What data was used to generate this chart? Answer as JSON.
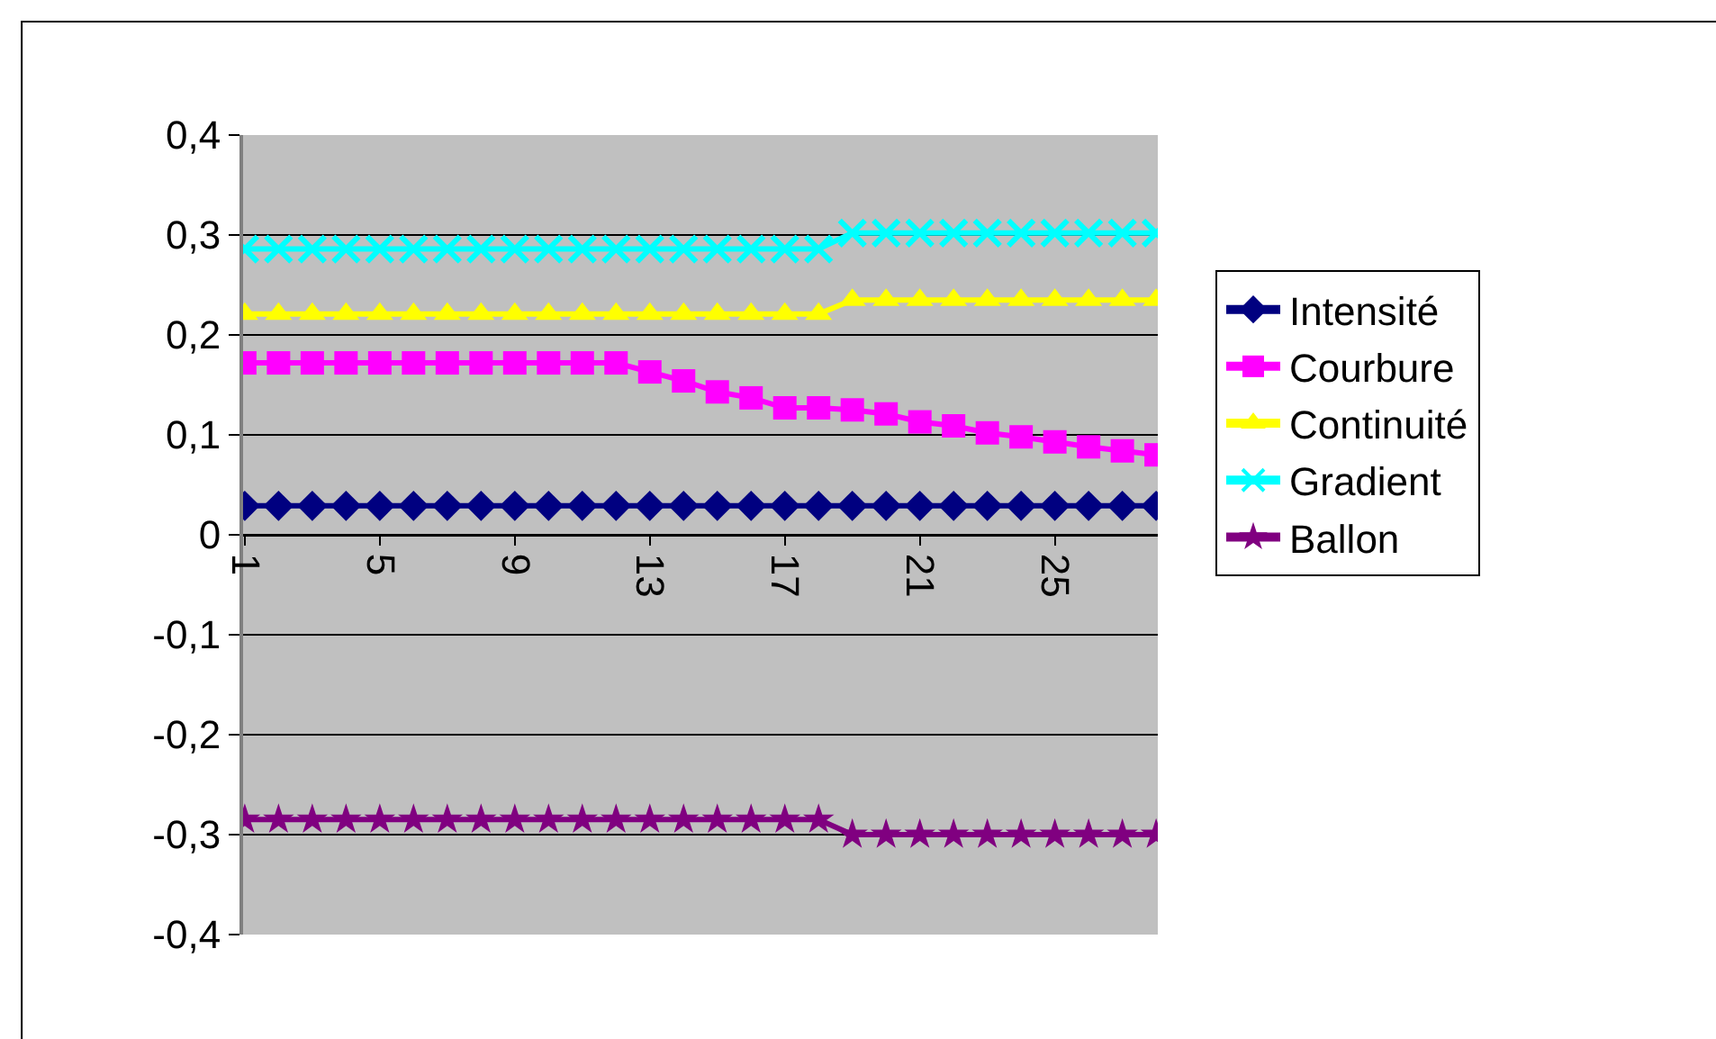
{
  "chart_data": {
    "type": "line",
    "categories": [
      "1",
      null,
      null,
      null,
      "5",
      null,
      null,
      null,
      "9",
      null,
      null,
      null,
      "13",
      null,
      null,
      null,
      "17",
      null,
      null,
      null,
      "21",
      null,
      null,
      null,
      "25",
      null,
      null,
      null
    ],
    "series": [
      {
        "name": "Intensité",
        "color": "#000080",
        "marker": "diamond",
        "values": [
          0.029,
          0.029,
          0.029,
          0.029,
          0.029,
          0.029,
          0.029,
          0.029,
          0.029,
          0.029,
          0.029,
          0.029,
          0.029,
          0.029,
          0.029,
          0.029,
          0.029,
          0.029,
          0.029,
          0.029,
          0.029,
          0.029,
          0.029,
          0.029,
          0.029,
          0.029,
          0.029,
          0.029
        ]
      },
      {
        "name": "Courbure",
        "color": "#ff00ff",
        "marker": "square",
        "values": [
          0.172,
          0.172,
          0.172,
          0.172,
          0.172,
          0.172,
          0.172,
          0.172,
          0.172,
          0.172,
          0.172,
          0.172,
          0.163,
          0.154,
          0.143,
          0.137,
          0.127,
          0.127,
          0.125,
          0.121,
          0.113,
          0.109,
          0.102,
          0.098,
          0.093,
          0.088,
          0.084,
          0.08
        ]
      },
      {
        "name": "Continuité",
        "color": "#ffff00",
        "marker": "triangle",
        "values": [
          0.221,
          0.221,
          0.221,
          0.221,
          0.221,
          0.221,
          0.221,
          0.221,
          0.221,
          0.221,
          0.221,
          0.221,
          0.221,
          0.221,
          0.221,
          0.221,
          0.221,
          0.221,
          0.235,
          0.235,
          0.235,
          0.235,
          0.235,
          0.235,
          0.235,
          0.235,
          0.235,
          0.235
        ]
      },
      {
        "name": "Gradient",
        "color": "#00ffff",
        "marker": "cross",
        "values": [
          0.286,
          0.286,
          0.286,
          0.286,
          0.286,
          0.286,
          0.286,
          0.286,
          0.286,
          0.286,
          0.286,
          0.286,
          0.286,
          0.286,
          0.286,
          0.286,
          0.286,
          0.286,
          0.302,
          0.302,
          0.302,
          0.302,
          0.302,
          0.302,
          0.302,
          0.302,
          0.302,
          0.302
        ]
      },
      {
        "name": "Ballon",
        "color": "#800080",
        "marker": "star",
        "values": [
          -0.285,
          -0.285,
          -0.285,
          -0.285,
          -0.285,
          -0.285,
          -0.285,
          -0.285,
          -0.285,
          -0.285,
          -0.285,
          -0.285,
          -0.285,
          -0.285,
          -0.285,
          -0.285,
          -0.285,
          -0.285,
          -0.3,
          -0.3,
          -0.3,
          -0.3,
          -0.3,
          -0.3,
          -0.3,
          -0.3,
          -0.3,
          -0.3
        ]
      }
    ],
    "ylim": [
      -0.4,
      0.4
    ],
    "yticks": [
      {
        "value": -0.4,
        "label": "-0,4"
      },
      {
        "value": -0.3,
        "label": "-0,3"
      },
      {
        "value": -0.2,
        "label": "-0,2"
      },
      {
        "value": -0.1,
        "label": "-0,1"
      },
      {
        "value": 0,
        "label": "0"
      },
      {
        "value": 0.1,
        "label": "0,1"
      },
      {
        "value": 0.2,
        "label": "0,2"
      },
      {
        "value": 0.3,
        "label": "0,3"
      },
      {
        "value": 0.4,
        "label": "0,4"
      }
    ],
    "grid": "y",
    "legend": "right",
    "line_style": "solid"
  }
}
